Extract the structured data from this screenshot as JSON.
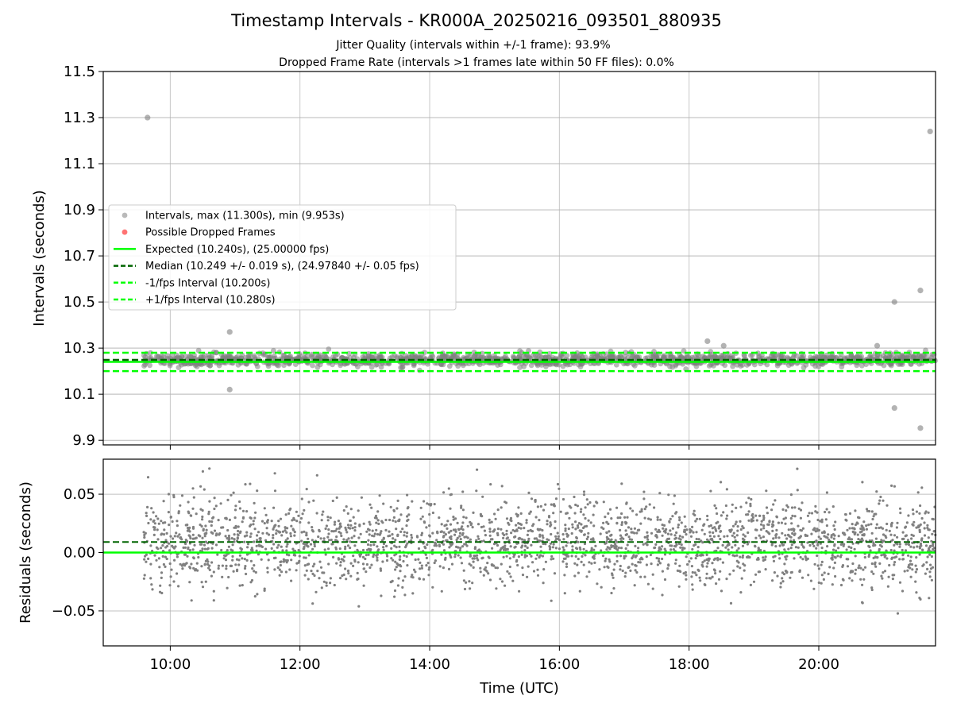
{
  "title": "Timestamp Intervals - KR000A_20250216_093501_880935",
  "subtitle1": "Jitter Quality (intervals within +/-1 frame): 93.9%",
  "subtitle2": "Dropped Frame Rate (intervals >1 frames late within 50 FF files): 0.0%",
  "colors": {
    "points": "#808080",
    "expected": "#00ff00",
    "median": "#006400",
    "dropped": "#ff0000",
    "grid": "#b0b0b0"
  },
  "chart_data": [
    {
      "type": "scatter",
      "ylabel": "Intervals (seconds)",
      "ylim": [
        9.88,
        11.5
      ],
      "yticks": [
        9.9,
        10.1,
        10.3,
        10.5,
        10.7,
        10.9,
        11.1,
        11.3,
        11.5
      ],
      "ytick_labels": [
        "9.9",
        "10.1",
        "10.3",
        "10.5",
        "10.7",
        "10.9",
        "11.1",
        "11.3",
        "11.5"
      ],
      "xlim": [
        "08:58",
        "21:48"
      ],
      "grid": true,
      "legend_placement": "center-left",
      "legend": [
        "Intervals, max (11.300s), min (9.953s)",
        "Possible Dropped Frames",
        "Expected (10.240s), (25.00000 fps)",
        "Median (10.249 +/- 0.019 s), (24.97840 +/- 0.05 fps)",
        "-1/fps Interval (10.200s)",
        "+1/fps Interval (10.280s)"
      ],
      "reference_lines": {
        "expected": 10.24,
        "median": 10.249,
        "minus_one_fps": 10.2,
        "plus_one_fps": 10.28
      },
      "band": {
        "x_start": "09:35",
        "x_end": "21:48",
        "center": 10.249,
        "spread": 0.019
      },
      "outliers": [
        {
          "x": "09:39",
          "y": 11.3
        },
        {
          "x": "10:55",
          "y": 10.37
        },
        {
          "x": "10:55",
          "y": 10.12
        },
        {
          "x": "18:17",
          "y": 10.33
        },
        {
          "x": "18:32",
          "y": 10.31
        },
        {
          "x": "20:54",
          "y": 10.31
        },
        {
          "x": "21:10",
          "y": 10.5
        },
        {
          "x": "21:10",
          "y": 10.04
        },
        {
          "x": "21:34",
          "y": 10.55
        },
        {
          "x": "21:34",
          "y": 9.953
        },
        {
          "x": "21:43",
          "y": 11.24
        }
      ]
    },
    {
      "type": "scatter",
      "ylabel": "Residuals (seconds)",
      "xlabel": "Time (UTC)",
      "ylim": [
        -0.08,
        0.08
      ],
      "yticks": [
        0.05,
        0.0,
        -0.05
      ],
      "ytick_labels": [
        "0.05",
        "0.00",
        "−0.05"
      ],
      "xlim": [
        "08:58",
        "21:48"
      ],
      "xticks": [
        "10:00",
        "12:00",
        "14:00",
        "16:00",
        "18:00",
        "20:00"
      ],
      "xtick_labels": [
        "10:00",
        "12:00",
        "14:00",
        "16:00",
        "18:00",
        "20:00"
      ],
      "grid": true,
      "reference_lines": {
        "expected": 0.0,
        "median": 0.009
      },
      "residual_spread": 0.019
    }
  ]
}
